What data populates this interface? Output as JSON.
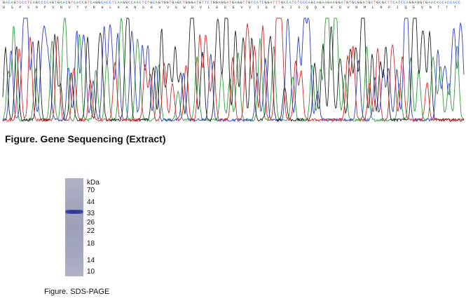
{
  "sequencing": {
    "dna_sequence": "GACAGTCCCTCAGCCCCAGTGAACGTCACCGTCAGGCACCTCAAGGCCAACTCTGCAGTGGTGAGCTGGGATGTTCTGGAGGATGAGGTTGTCATCGGATTTGCCATCTCCCAGCAGAAGAAGGATGTGCGGATGCTGCGCTTCATCCAGGAGGTGAACACCACCACC",
    "protein_sequence": [
      "D",
      "S",
      "P",
      "S",
      "A",
      "P",
      "V",
      "N",
      "V",
      "T",
      "V",
      "R",
      "H",
      "L",
      "K",
      "A",
      "N",
      "S",
      "A",
      "V",
      "V",
      "S",
      "W",
      "D",
      "V",
      "L",
      "E",
      "D",
      "E",
      "V",
      "V",
      "I",
      "G",
      "F",
      "A",
      "I",
      "S",
      "Q",
      "Q",
      "K",
      "K",
      "D",
      "V",
      "R",
      "M",
      "L",
      "R",
      "F",
      "I",
      "Q",
      "E",
      "V",
      "N",
      "T",
      "T",
      "T"
    ],
    "caption": "Figure. Gene Sequencing (Extract)",
    "colors": {
      "A": "#2e9e3a",
      "C": "#2f3fbf",
      "G": "#222222",
      "T": "#d02a2a"
    }
  },
  "sds_page": {
    "unit_label": "kDa",
    "markers": [
      70,
      44,
      33,
      26,
      22,
      18,
      14,
      10
    ],
    "band_marker_kda": 33,
    "caption": "Figure. SDS-PAGE"
  }
}
